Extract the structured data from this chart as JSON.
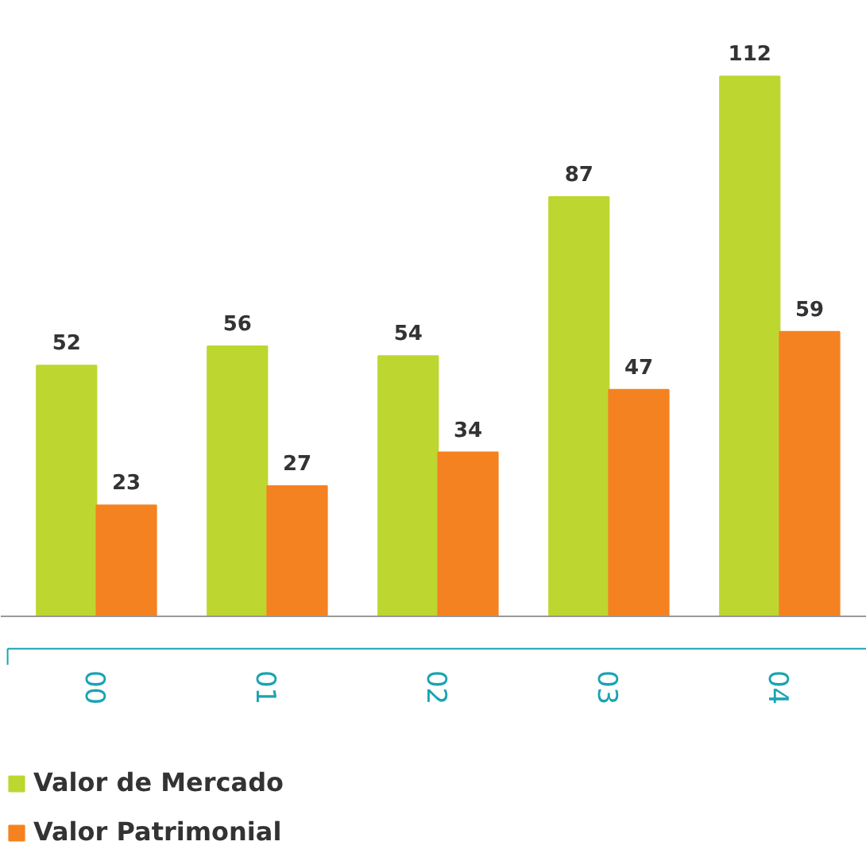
{
  "chart_data": {
    "type": "bar",
    "categories": [
      "00",
      "01",
      "02",
      "03",
      "04"
    ],
    "series": [
      {
        "name": "Valor de Mercado",
        "color": "#bed630",
        "values": [
          52,
          56,
          54,
          87,
          112
        ]
      },
      {
        "name": "Valor Patrimonial",
        "color": "#f58220",
        "values": [
          23,
          27,
          34,
          47,
          59
        ]
      }
    ],
    "data_labels": true,
    "grid": false,
    "legend": "bottom left"
  }
}
